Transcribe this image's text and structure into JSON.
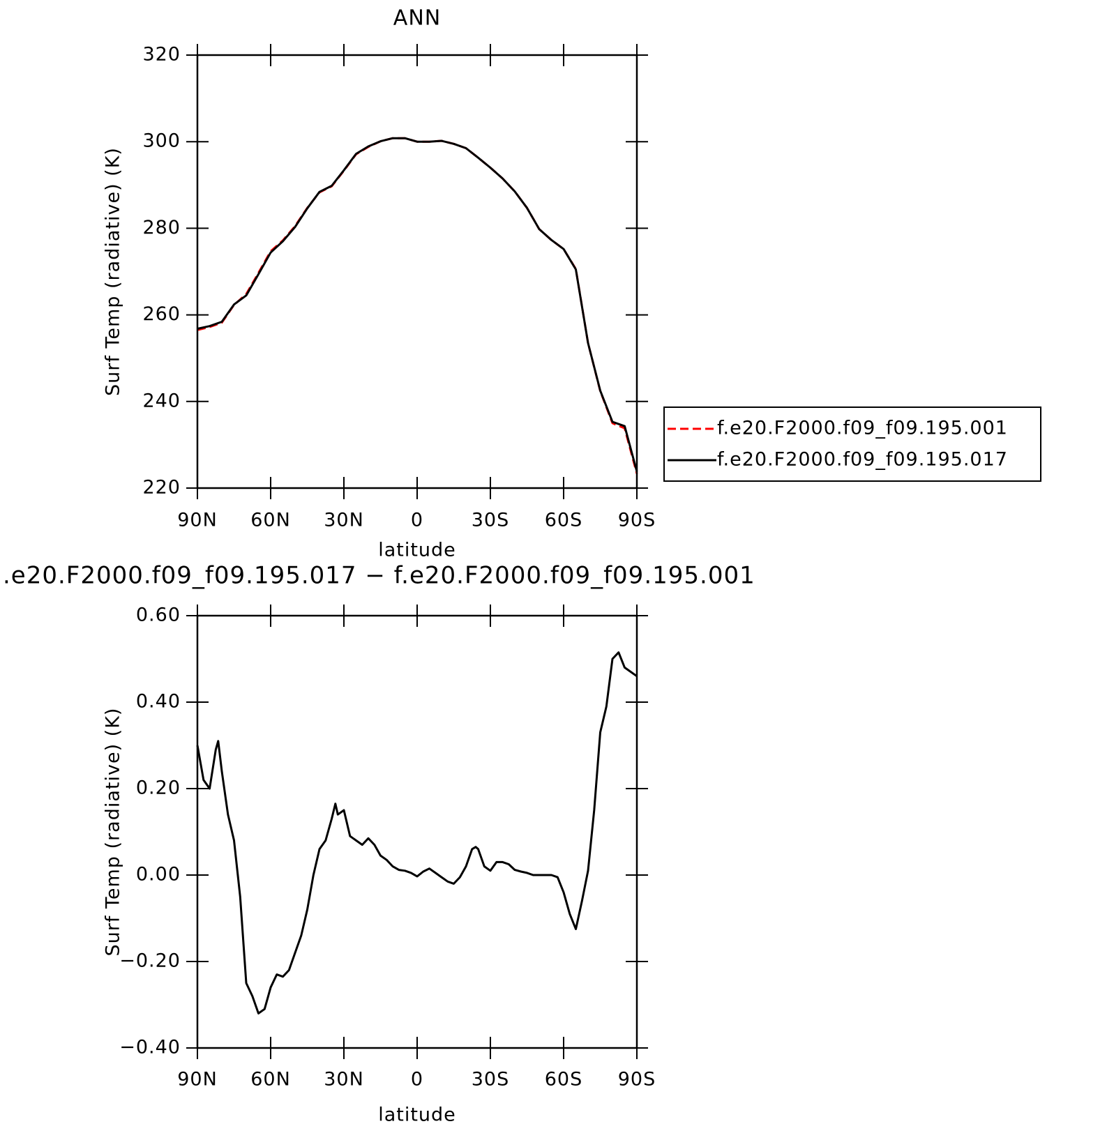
{
  "chart_data": [
    {
      "type": "line",
      "title": "ANN",
      "xlabel": "latitude",
      "ylabel": "Surf Temp (radiative) (K)",
      "x": [
        90,
        85,
        80,
        75,
        70,
        65,
        60,
        55,
        50,
        45,
        40,
        35,
        30,
        25,
        20,
        15,
        10,
        5,
        0,
        -5,
        -10,
        -15,
        -20,
        -25,
        -30,
        -35,
        -40,
        -45,
        -50,
        -55,
        -60,
        -65,
        -70,
        -75,
        -80,
        -85,
        -90
      ],
      "series": [
        {
          "name": "f.e20.F2000.f09_f09.195.001",
          "color": "#ff0000",
          "linestyle": "dashed",
          "values": [
            256.5,
            257.2,
            258.2,
            262.3,
            264.8,
            269.7,
            274.7,
            277.2,
            280.5,
            284.7,
            288.3,
            289.7,
            293.3,
            297.1,
            298.8,
            300.1,
            300.8,
            300.8,
            300.0,
            300.0,
            300.2,
            299.5,
            298.5,
            296.3,
            294.0,
            291.5,
            288.5,
            284.7,
            279.8,
            277.3,
            275.2,
            270.6,
            253.5,
            242.4,
            235.0,
            233.8,
            223.3
          ]
        },
        {
          "name": "f.e20.F2000.f09_f09.195.017",
          "color": "#000000",
          "linestyle": "solid",
          "values": [
            256.8,
            257.4,
            258.4,
            262.4,
            264.5,
            269.4,
            274.4,
            277.0,
            280.3,
            284.6,
            288.4,
            289.8,
            293.4,
            297.2,
            298.9,
            300.1,
            300.8,
            300.8,
            300.0,
            300.0,
            300.2,
            299.5,
            298.5,
            296.3,
            294.0,
            291.5,
            288.5,
            284.7,
            279.8,
            277.3,
            275.2,
            270.5,
            253.5,
            242.5,
            235.3,
            234.3,
            223.8
          ]
        }
      ],
      "xlim": [
        90,
        -90
      ],
      "xticks": [
        {
          "value": 90,
          "label": "90N"
        },
        {
          "value": 60,
          "label": "60N"
        },
        {
          "value": 30,
          "label": "30N"
        },
        0,
        {
          "value": -30,
          "label": "30S"
        },
        {
          "value": -60,
          "label": "60S"
        },
        {
          "value": -90,
          "label": "90S"
        }
      ],
      "ylim": [
        220,
        320
      ],
      "yticks": [
        220,
        240,
        260,
        280,
        300,
        320
      ],
      "legend": "outside right"
    },
    {
      "type": "line",
      "title": ".e20.F2000.f09_f09.195.017 − f.e20.F2000.f09_f09.195.001",
      "xlabel": "latitude",
      "ylabel": "Surf Temp (radiative) (K)",
      "x": [
        90,
        87.5,
        85,
        82.5,
        81.5,
        80,
        77.5,
        75,
        72.5,
        70,
        67.5,
        65,
        62.5,
        60,
        57.5,
        55,
        52.5,
        50,
        47.5,
        45,
        42.5,
        40,
        37.5,
        35,
        33.5,
        32.5,
        30,
        27.5,
        25,
        22.5,
        20,
        17.5,
        15,
        12.5,
        10,
        7.5,
        5,
        2.5,
        0,
        -2.5,
        -5,
        -7.5,
        -10,
        -12.5,
        -15,
        -17.5,
        -20,
        -22.5,
        -24,
        -25,
        -27.5,
        -30,
        -32.5,
        -35,
        -37.5,
        -40,
        -42.5,
        -45,
        -47.5,
        -50,
        -52.5,
        -55,
        -57.5,
        -60,
        -62.5,
        -65,
        -67.5,
        -70,
        -72.5,
        -75,
        -77.5,
        -80,
        -82.5,
        -85,
        -87.5,
        -90
      ],
      "series": [
        {
          "color": "#000000",
          "linestyle": "solid",
          "values": [
            0.3,
            0.22,
            0.2,
            0.29,
            0.31,
            0.24,
            0.14,
            0.08,
            -0.05,
            -0.25,
            -0.28,
            -0.32,
            -0.31,
            -0.26,
            -0.23,
            -0.235,
            -0.22,
            -0.18,
            -0.14,
            -0.08,
            0.0,
            0.06,
            0.08,
            0.13,
            0.165,
            0.14,
            0.15,
            0.09,
            0.08,
            0.07,
            0.085,
            0.07,
            0.045,
            0.035,
            0.02,
            0.012,
            0.01,
            0.005,
            -0.003,
            0.008,
            0.015,
            0.005,
            -0.005,
            -0.015,
            -0.02,
            -0.005,
            0.02,
            0.06,
            0.065,
            0.06,
            0.02,
            0.01,
            0.03,
            0.03,
            0.025,
            0.012,
            0.008,
            0.005,
            0.0,
            0.0,
            0.0,
            0.0,
            -0.005,
            -0.04,
            -0.09,
            -0.125,
            -0.06,
            0.01,
            0.15,
            0.33,
            0.39,
            0.5,
            0.515,
            0.48,
            0.47,
            0.46
          ]
        }
      ],
      "xlim": [
        90,
        -90
      ],
      "xticks": [
        {
          "value": 90,
          "label": "90N"
        },
        {
          "value": 60,
          "label": "60N"
        },
        {
          "value": 30,
          "label": "30N"
        },
        0,
        {
          "value": -30,
          "label": "30S"
        },
        {
          "value": -60,
          "label": "60S"
        },
        {
          "value": -90,
          "label": "90S"
        }
      ],
      "ylim": [
        -0.4,
        0.6
      ],
      "yticks": [
        {
          "value": -0.4,
          "label": "−0.40"
        },
        {
          "value": -0.2,
          "label": "−0.20"
        },
        {
          "value": 0,
          "label": "0.00"
        },
        {
          "value": 0.2,
          "label": "0.20"
        },
        {
          "value": 0.4,
          "label": "0.40"
        },
        {
          "value": 0.6,
          "label": "0.60"
        }
      ]
    }
  ]
}
